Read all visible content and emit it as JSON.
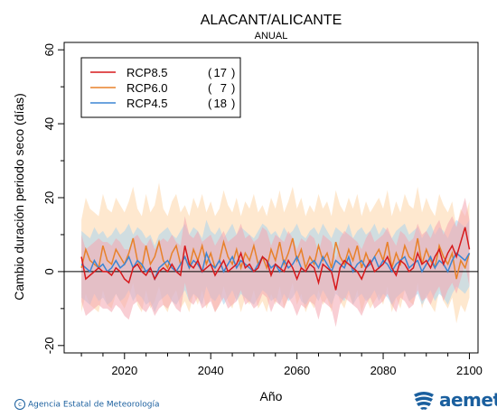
{
  "chart_data": {
    "type": "line",
    "title": "ALACANT/ALICANTE",
    "subtitle": "ANUAL",
    "xlabel": "Año",
    "ylabel": "Cambio duración periodo seco (días)",
    "xlim": [
      2006,
      2102
    ],
    "ylim": [
      -22,
      62
    ],
    "xticks": [
      2020,
      2040,
      2060,
      2080,
      2100
    ],
    "yticks": [
      -20,
      0,
      20,
      40,
      60
    ],
    "grid": false,
    "legend_position": "top-left",
    "x": [
      2010,
      2011,
      2012,
      2013,
      2014,
      2015,
      2016,
      2017,
      2018,
      2019,
      2020,
      2021,
      2022,
      2023,
      2024,
      2025,
      2026,
      2027,
      2028,
      2029,
      2030,
      2031,
      2032,
      2033,
      2034,
      2035,
      2036,
      2037,
      2038,
      2039,
      2040,
      2041,
      2042,
      2043,
      2044,
      2045,
      2046,
      2047,
      2048,
      2049,
      2050,
      2051,
      2052,
      2053,
      2054,
      2055,
      2056,
      2057,
      2058,
      2059,
      2060,
      2061,
      2062,
      2063,
      2064,
      2065,
      2066,
      2067,
      2068,
      2069,
      2070,
      2071,
      2072,
      2073,
      2074,
      2075,
      2076,
      2077,
      2078,
      2079,
      2080,
      2081,
      2082,
      2083,
      2084,
      2085,
      2086,
      2087,
      2088,
      2089,
      2090,
      2091,
      2092,
      2093,
      2094,
      2095,
      2096,
      2097,
      2098,
      2099,
      2100
    ],
    "series": [
      {
        "name": "RCP8.5",
        "count": "17",
        "color": "#d7191c",
        "band_color": "#f4a6b0",
        "values": [
          4,
          -2,
          -1,
          0,
          1,
          0,
          0,
          -1,
          1,
          0,
          -2,
          -3,
          1,
          2,
          0,
          -1,
          1,
          -2,
          0,
          1,
          0,
          2,
          0,
          -1,
          7,
          2,
          1,
          3,
          0,
          1,
          2,
          -1,
          1,
          3,
          0,
          1,
          2,
          5,
          1,
          2,
          0,
          1,
          4,
          3,
          -1,
          2,
          1,
          0,
          3,
          1,
          -2,
          1,
          0,
          2,
          1,
          -3,
          2,
          1,
          0,
          -5,
          1,
          3,
          2,
          1,
          0,
          -2,
          1,
          3,
          0,
          1,
          2,
          4,
          1,
          -1,
          3,
          2,
          0,
          1,
          5,
          2,
          3,
          1,
          4,
          6,
          2,
          5,
          7,
          4,
          8,
          12,
          6
        ],
        "upper": [
          10,
          6,
          7,
          8,
          9,
          8,
          8,
          7,
          9,
          8,
          6,
          6,
          9,
          10,
          8,
          7,
          9,
          6,
          8,
          9,
          8,
          10,
          8,
          7,
          15,
          10,
          9,
          11,
          8,
          9,
          10,
          7,
          9,
          11,
          8,
          9,
          10,
          13,
          9,
          10,
          8,
          9,
          12,
          11,
          7,
          10,
          9,
          8,
          11,
          9,
          6,
          9,
          8,
          10,
          9,
          5,
          10,
          9,
          8,
          3,
          9,
          11,
          10,
          9,
          8,
          6,
          9,
          11,
          8,
          9,
          10,
          12,
          9,
          7,
          11,
          10,
          8,
          9,
          13,
          10,
          11,
          9,
          12,
          14,
          10,
          13,
          15,
          12,
          16,
          20,
          14
        ],
        "lower": [
          -8,
          -12,
          -11,
          -10,
          -9,
          -10,
          -10,
          -11,
          -9,
          -10,
          -12,
          -13,
          -9,
          -8,
          -10,
          -11,
          -9,
          -12,
          -10,
          -9,
          -10,
          -8,
          -10,
          -11,
          -3,
          -8,
          -9,
          -7,
          -10,
          -9,
          -8,
          -11,
          -9,
          -7,
          -10,
          -9,
          -8,
          -5,
          -9,
          -8,
          -10,
          -9,
          -6,
          -7,
          -11,
          -8,
          -9,
          -10,
          -7,
          -9,
          -12,
          -9,
          -10,
          -8,
          -9,
          -13,
          -8,
          -9,
          -10,
          -15,
          -9,
          -7,
          -8,
          -9,
          -10,
          -12,
          -9,
          -7,
          -10,
          -9,
          -8,
          -6,
          -9,
          -11,
          -7,
          -8,
          -10,
          -9,
          -5,
          -8,
          -7,
          -9,
          -6,
          -4,
          -8,
          -5,
          -3,
          -6,
          -2,
          2,
          -4
        ]
      },
      {
        "name": "RCP6.0",
        "count": "7",
        "color": "#e8812a",
        "band_color": "#fdd5a8",
        "values": [
          1,
          6,
          3,
          2,
          1,
          7,
          3,
          2,
          6,
          4,
          2,
          5,
          9,
          3,
          1,
          7,
          2,
          4,
          8,
          3,
          1,
          5,
          7,
          2,
          4,
          1,
          6,
          3,
          7,
          2,
          5,
          1,
          3,
          8,
          4,
          2,
          6,
          1,
          5,
          3,
          7,
          2,
          4,
          1,
          6,
          3,
          8,
          2,
          5,
          9,
          3,
          6,
          1,
          4,
          2,
          7,
          3,
          5,
          1,
          8,
          4,
          2,
          6,
          3,
          7,
          1,
          5,
          2,
          4,
          6,
          3,
          8,
          1,
          5,
          2,
          7,
          4,
          3,
          9,
          2,
          6,
          3,
          1,
          7,
          4,
          2,
          5,
          -2,
          3,
          1,
          5
        ],
        "upper": [
          14,
          20,
          17,
          16,
          15,
          21,
          17,
          16,
          20,
          18,
          16,
          19,
          23,
          17,
          15,
          21,
          16,
          18,
          24,
          17,
          15,
          19,
          21,
          16,
          18,
          15,
          20,
          17,
          21,
          16,
          19,
          15,
          17,
          22,
          18,
          16,
          20,
          15,
          19,
          17,
          21,
          16,
          18,
          15,
          20,
          17,
          22,
          16,
          19,
          23,
          17,
          20,
          15,
          18,
          16,
          21,
          17,
          19,
          15,
          22,
          18,
          16,
          20,
          17,
          21,
          15,
          19,
          16,
          18,
          20,
          17,
          22,
          15,
          19,
          16,
          21,
          18,
          17,
          23,
          16,
          20,
          17,
          15,
          21,
          18,
          16,
          19,
          12,
          17,
          15,
          19
        ],
        "lower": [
          -11,
          -6,
          -9,
          -10,
          -11,
          -5,
          -9,
          -10,
          -6,
          -8,
          -10,
          -7,
          -3,
          -9,
          -11,
          -5,
          -10,
          -8,
          -4,
          -9,
          -11,
          -7,
          -5,
          -10,
          -8,
          -11,
          -6,
          -9,
          -5,
          -10,
          -7,
          -11,
          -9,
          -4,
          -8,
          -10,
          -6,
          -11,
          -7,
          -9,
          -5,
          -10,
          -8,
          -11,
          -6,
          -9,
          -4,
          -10,
          -7,
          -3,
          -9,
          -6,
          -11,
          -8,
          -10,
          -5,
          -9,
          -7,
          -11,
          -4,
          -8,
          -10,
          -6,
          -9,
          -5,
          -11,
          -7,
          -10,
          -8,
          -6,
          -9,
          -4,
          -11,
          -7,
          -10,
          -5,
          -8,
          -9,
          -3,
          -10,
          -6,
          -9,
          -11,
          -5,
          -8,
          -10,
          -7,
          -14,
          -9,
          -11,
          -7
        ]
      },
      {
        "name": "RCP4.5",
        "count": "18",
        "color": "#3b86d4",
        "band_color": "#a9d4ee",
        "values": [
          2,
          1,
          0,
          3,
          1,
          2,
          0,
          1,
          3,
          1,
          2,
          4,
          1,
          3,
          2,
          0,
          1,
          -2,
          1,
          2,
          3,
          1,
          0,
          2,
          4,
          1,
          3,
          2,
          0,
          5,
          2,
          1,
          3,
          0,
          2,
          4,
          1,
          3,
          2,
          1,
          0,
          2,
          4,
          3,
          1,
          2,
          0,
          3,
          1,
          2,
          4,
          1,
          0,
          2,
          3,
          1,
          4,
          2,
          0,
          3,
          2,
          1,
          4,
          0,
          2,
          3,
          1,
          2,
          4,
          1,
          3,
          2,
          0,
          2,
          3,
          4,
          1,
          2,
          3,
          0,
          2,
          4,
          1,
          3,
          2,
          0,
          3,
          5,
          4,
          3,
          5
        ],
        "upper": [
          11,
          10,
          9,
          12,
          10,
          11,
          9,
          10,
          12,
          10,
          11,
          13,
          10,
          12,
          11,
          9,
          10,
          7,
          10,
          11,
          12,
          10,
          9,
          11,
          13,
          10,
          12,
          11,
          9,
          14,
          11,
          10,
          12,
          9,
          11,
          13,
          10,
          12,
          11,
          10,
          9,
          11,
          13,
          12,
          10,
          11,
          9,
          12,
          10,
          11,
          13,
          10,
          9,
          11,
          12,
          10,
          13,
          11,
          9,
          12,
          11,
          10,
          13,
          9,
          11,
          12,
          10,
          11,
          13,
          10,
          12,
          11,
          9,
          11,
          12,
          13,
          10,
          11,
          12,
          9,
          11,
          13,
          10,
          12,
          11,
          9,
          12,
          14,
          13,
          12,
          14
        ],
        "lower": [
          -7,
          -8,
          -9,
          -6,
          -8,
          -7,
          -9,
          -8,
          -6,
          -8,
          -7,
          -5,
          -8,
          -6,
          -7,
          -9,
          -8,
          -11,
          -8,
          -7,
          -6,
          -8,
          -9,
          -7,
          -5,
          -8,
          -6,
          -7,
          -9,
          -4,
          -7,
          -8,
          -6,
          -9,
          -7,
          -5,
          -8,
          -6,
          -7,
          -8,
          -9,
          -7,
          -5,
          -6,
          -8,
          -7,
          -9,
          -6,
          -8,
          -7,
          -5,
          -8,
          -9,
          -7,
          -6,
          -8,
          -5,
          -7,
          -9,
          -6,
          -7,
          -8,
          -5,
          -9,
          -7,
          -6,
          -8,
          -7,
          -5,
          -8,
          -6,
          -7,
          -9,
          -7,
          -6,
          -5,
          -8,
          -7,
          -6,
          -9,
          -7,
          -5,
          -8,
          -6,
          -7,
          -9,
          -6,
          -4,
          -5,
          -6,
          -4
        ]
      }
    ]
  },
  "footer": {
    "credit": "Agencia Estatal de Meteorología",
    "brand": "aemet"
  }
}
